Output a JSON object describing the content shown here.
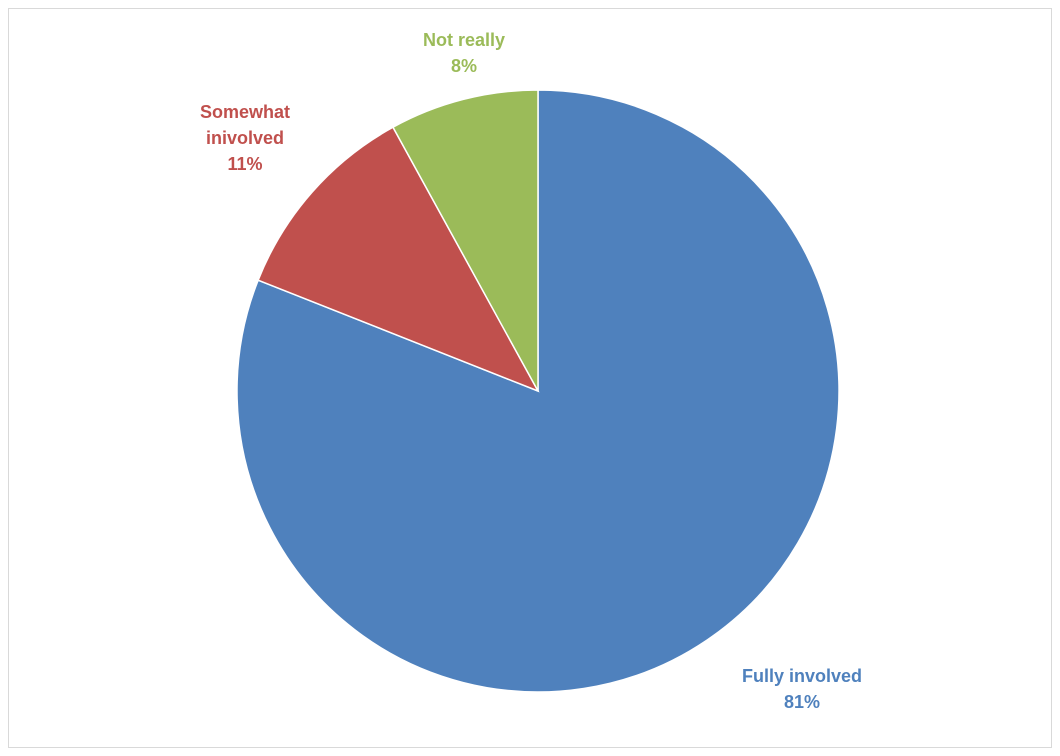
{
  "chart_data": {
    "type": "pie",
    "title": "",
    "start_angle_deg": 0,
    "direction": "clockwise",
    "legend": "none",
    "slices": [
      {
        "label_lines": [
          "Fully involved"
        ],
        "value": 81,
        "value_label": "81%",
        "color": "#4f81bd"
      },
      {
        "label_lines": [
          "Somewhat",
          "inivolved"
        ],
        "value": 11,
        "value_label": "11%",
        "color": "#c0504d"
      },
      {
        "label_lines": [
          "Not really"
        ],
        "value": 8,
        "value_label": "8%",
        "color": "#9bbb59"
      }
    ]
  }
}
